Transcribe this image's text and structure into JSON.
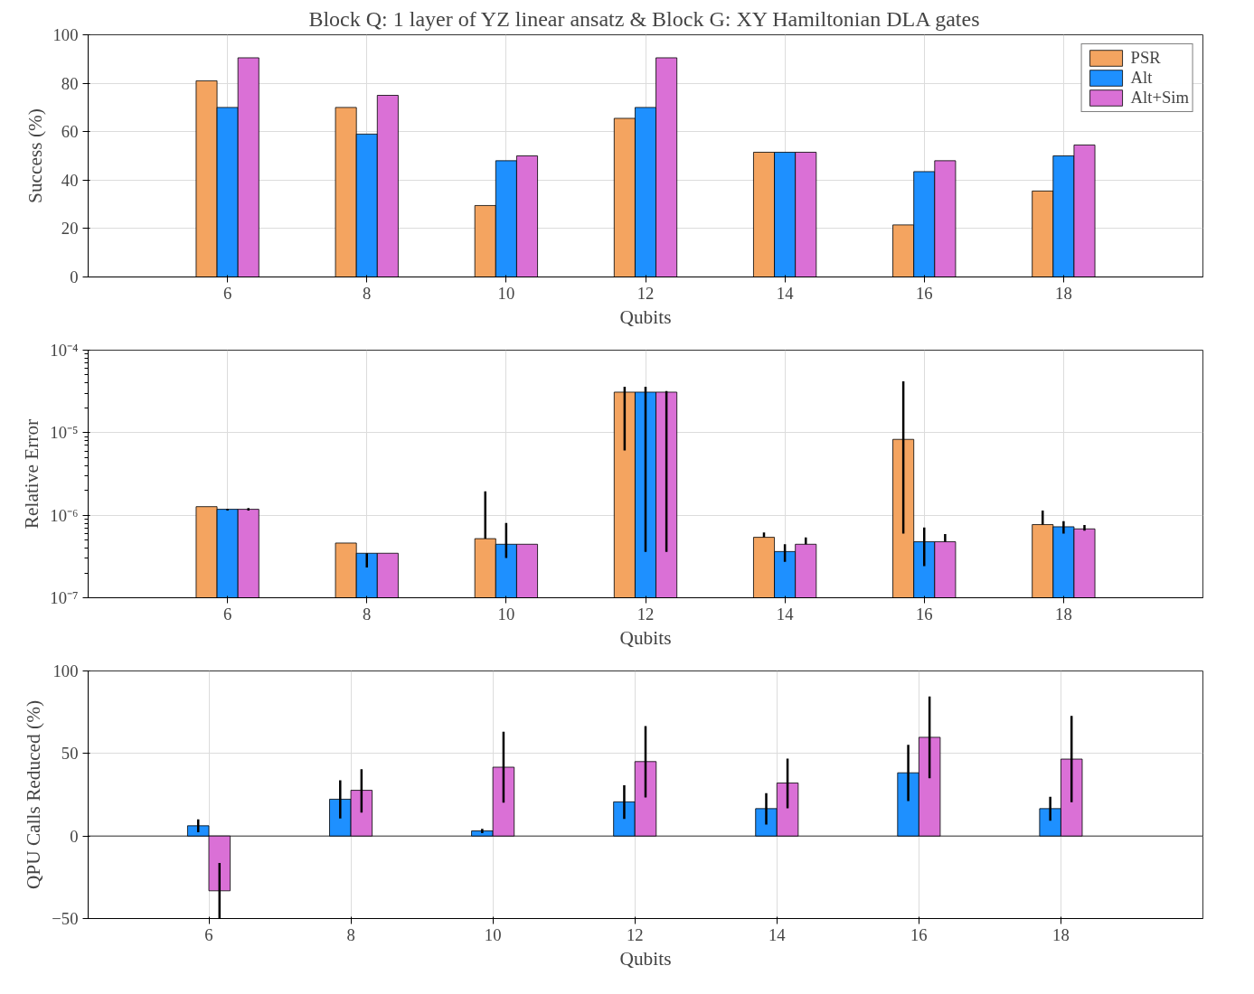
{
  "chart_data": [
    {
      "type": "bar",
      "title": "Block Q: 1 layer of YZ linear ansatz & Block G: XY Hamiltonian DLA gates",
      "xlabel": "Qubits",
      "ylabel": "Success (%)",
      "x": [
        6,
        8,
        10,
        12,
        14,
        16,
        18
      ],
      "xlim": [
        4,
        20
      ],
      "xticks": [
        6,
        8,
        10,
        12,
        14,
        16,
        18
      ],
      "ylim": [
        0,
        100
      ],
      "yticks": [
        0,
        20,
        40,
        60,
        80,
        100
      ],
      "grid": true,
      "legend": "top right",
      "series": [
        {
          "name": "PSR",
          "color": "#f4a460",
          "values": [
            81,
            70,
            29.5,
            65.5,
            51.5,
            21.5,
            35.5
          ]
        },
        {
          "name": "Alt",
          "color": "#1e90ff",
          "values": [
            70,
            59,
            48,
            70,
            51.5,
            43.5,
            50
          ]
        },
        {
          "name": "Alt+Sim",
          "color": "#da70d6",
          "values": [
            90.5,
            75,
            50,
            90.5,
            51.5,
            48,
            54.5
          ]
        }
      ]
    },
    {
      "type": "bar",
      "xlabel": "Qubits",
      "ylabel": "Relative Error",
      "log": "y",
      "x": [
        6,
        8,
        10,
        12,
        14,
        16,
        18
      ],
      "xlim": [
        4,
        20
      ],
      "xticks": [
        6,
        8,
        10,
        12,
        14,
        16,
        18
      ],
      "ylim": [
        1e-07,
        0.0001
      ],
      "yticks": [
        {
          "value": 1e-07,
          "label": "10⁻⁷"
        },
        {
          "value": 1e-06,
          "label": "10⁻⁶"
        },
        {
          "value": 1e-05,
          "label": "10⁻⁵"
        },
        {
          "value": 0.0001,
          "label": "10⁻⁴"
        }
      ],
      "grid": true,
      "series": [
        {
          "color": "#f4a460",
          "values": [
            1.27e-06,
            4.6e-07,
            5.2e-07,
            3.1e-05,
            5.4e-07,
            8.3e-06,
            7.7e-07
          ],
          "errors": [
            null,
            null,
            [
              5.2e-07,
              1.95e-06
            ],
            [
              6.1e-06,
              3.6e-05
            ],
            [
              5.4e-07,
              6.2e-07
            ],
            [
              6e-07,
              4.2e-05
            ],
            [
              7.7e-07,
              1.14e-06
            ]
          ]
        },
        {
          "color": "#1e90ff",
          "values": [
            1.18e-06,
            3.46e-07,
            4.45e-07,
            3.1e-05,
            3.63e-07,
            4.77e-07,
            7.25e-07
          ],
          "errors": [
            [
              1.14e-06,
              1.2e-06
            ],
            [
              2.33e-07,
              3.46e-07
            ],
            [
              3.03e-07,
              8.07e-07
            ],
            [
              3.6e-07,
              3.6e-05
            ],
            [
              2.72e-07,
              4.45e-07
            ],
            [
              2.42e-07,
              7.08e-07
            ],
            [
              5.98e-07,
              8.46e-07
            ]
          ]
        },
        {
          "color": "#da70d6",
          "values": [
            1.18e-06,
            3.46e-07,
            4.45e-07,
            3.1e-05,
            4.45e-07,
            4.77e-07,
            6.83e-07
          ],
          "errors": [
            [
              1.14e-06,
              1.22e-06
            ],
            null,
            null,
            [
              3.6e-07,
              3.2e-05
            ],
            [
              4.45e-07,
              5.38e-07
            ],
            [
              4.77e-07,
              5.93e-07
            ],
            [
              6.5e-07,
              7.6e-07
            ]
          ]
        }
      ]
    },
    {
      "type": "bar",
      "xlabel": "Qubits",
      "ylabel": "QPU Calls Reduced (%)",
      "x": [
        6,
        8,
        10,
        12,
        14,
        16,
        18
      ],
      "xlim": [
        4.3,
        20
      ],
      "xticks": [
        6,
        8,
        10,
        12,
        14,
        16,
        18
      ],
      "ylim": [
        -50,
        100
      ],
      "yticks": [
        -50,
        0,
        50,
        100
      ],
      "grid": true,
      "series": [
        {
          "color": "#1e90ff",
          "values": [
            6.2,
            22.3,
            3.1,
            20.7,
            16.6,
            38.3,
            16.6
          ],
          "errors": [
            [
              2.3,
              10.1
            ],
            [
              10.6,
              33.7
            ],
            [
              1.8,
              4.4
            ],
            [
              10.4,
              30.8
            ],
            [
              7.0,
              25.9
            ],
            [
              21.2,
              55.2
            ],
            [
              9.3,
              23.8
            ]
          ]
        },
        {
          "color": "#da70d6",
          "values": [
            -33.2,
            27.7,
            41.7,
            45.1,
            32.1,
            59.8,
            46.6
          ],
          "errors": [
            [
              -50,
              -16.3
            ],
            [
              14.2,
              40.4
            ],
            [
              20.2,
              63.2
            ],
            [
              23.3,
              66.6
            ],
            [
              16.8,
              46.9
            ],
            [
              35,
              84.5
            ],
            [
              20.5,
              72.8
            ]
          ]
        }
      ]
    }
  ]
}
